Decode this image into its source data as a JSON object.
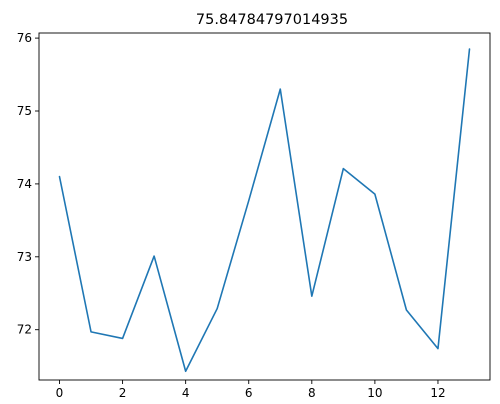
{
  "chart_data": {
    "type": "line",
    "title": "75.84784797014935",
    "xlabel": "",
    "ylabel": "",
    "x": [
      0,
      1,
      2,
      3,
      4,
      5,
      6,
      7,
      8,
      9,
      10,
      11,
      12,
      13
    ],
    "series": [
      {
        "values": [
          74.1,
          71.97,
          71.88,
          73.01,
          71.43,
          72.29,
          73.77,
          75.3,
          72.46,
          74.21,
          73.86,
          72.27,
          71.74,
          75.85
        ],
        "color": "#1f77b4"
      }
    ],
    "xlim": [
      -0.65,
      13.65
    ],
    "ylim": [
      71.31,
      76.07
    ],
    "xticks": [
      0,
      2,
      4,
      6,
      8,
      10,
      12
    ],
    "yticks": [
      72,
      73,
      74,
      75,
      76
    ],
    "grid": false,
    "legend": "none"
  }
}
